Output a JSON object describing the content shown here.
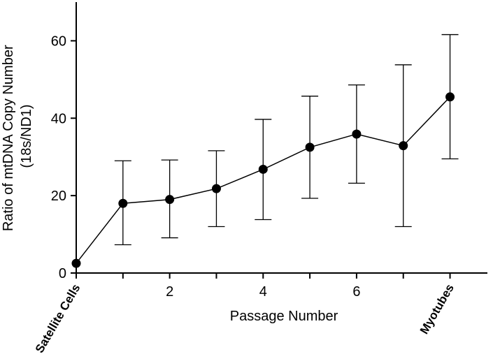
{
  "chart_data": {
    "type": "line",
    "title": "",
    "xlabel": "Passage Number",
    "ylabel_line1": "Ratio of mtDNA Copy Number",
    "ylabel_line2": "(18s/ND1)",
    "xlim": [
      0,
      8.8
    ],
    "ylim": [
      0,
      70
    ],
    "x_ticks": [
      2,
      4,
      6
    ],
    "x_tick_labels": [
      "2",
      "4",
      "6"
    ],
    "y_ticks": [
      0,
      20,
      40,
      60
    ],
    "y_tick_labels": [
      "0",
      "20",
      "40",
      "60"
    ],
    "category_labels": [
      {
        "x": 0,
        "text": "Satellite Cells"
      },
      {
        "x": 8,
        "text": "Myotubes"
      }
    ],
    "grid": false,
    "legend": "none",
    "series": [
      {
        "x": [
          0,
          1,
          2,
          3,
          4,
          5,
          6,
          7,
          8
        ],
        "y": [
          2.5,
          18,
          19,
          21.8,
          26.8,
          32.5,
          35.9,
          32.9,
          45.5
        ],
        "err_low": [
          2.5,
          7.3,
          9.1,
          12,
          13.8,
          19.3,
          23.2,
          12,
          29.5
        ],
        "err_high": [
          2.5,
          29,
          29.2,
          31.6,
          39.7,
          45.7,
          48.6,
          53.8,
          61.6
        ]
      }
    ],
    "colors": {
      "line": "#000000",
      "marker": "#000000"
    }
  }
}
